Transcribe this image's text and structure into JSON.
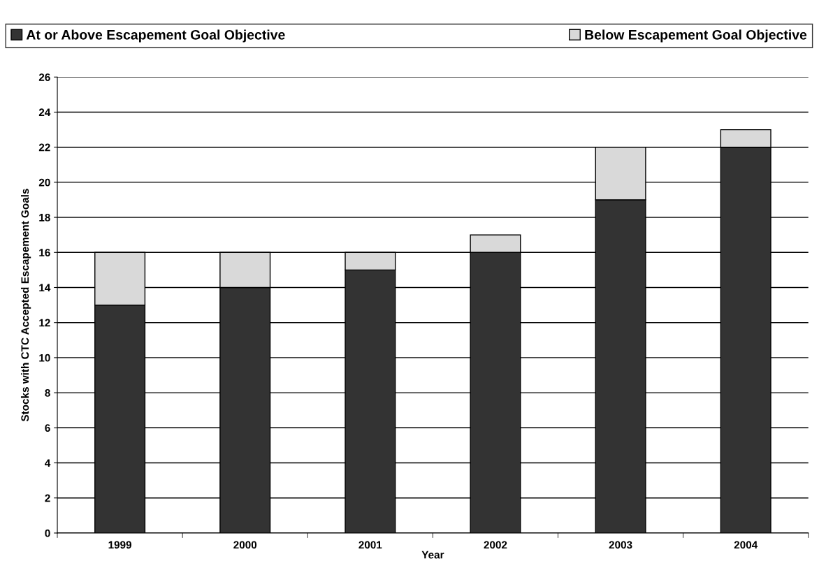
{
  "chart_data": {
    "type": "bar",
    "stacked": true,
    "xlabel": "Year",
    "ylabel": "Stocks with CTC Accepted Escapement Goals",
    "categories": [
      "1999",
      "2000",
      "2001",
      "2002",
      "2003",
      "2004"
    ],
    "series": [
      {
        "name": "At or Above Escapement Goal Objective",
        "color": "#333333",
        "values": [
          13,
          14,
          15,
          16,
          19,
          22
        ]
      },
      {
        "name": "Below Escapement Goal Objective",
        "color": "#d9d9d9",
        "values": [
          3,
          2,
          1,
          1,
          3,
          1
        ]
      }
    ],
    "ylim": [
      0,
      26
    ],
    "yticks": [
      0,
      2,
      4,
      6,
      8,
      10,
      12,
      14,
      16,
      18,
      20,
      22,
      24,
      26
    ],
    "grid": "y",
    "legend": "top"
  }
}
